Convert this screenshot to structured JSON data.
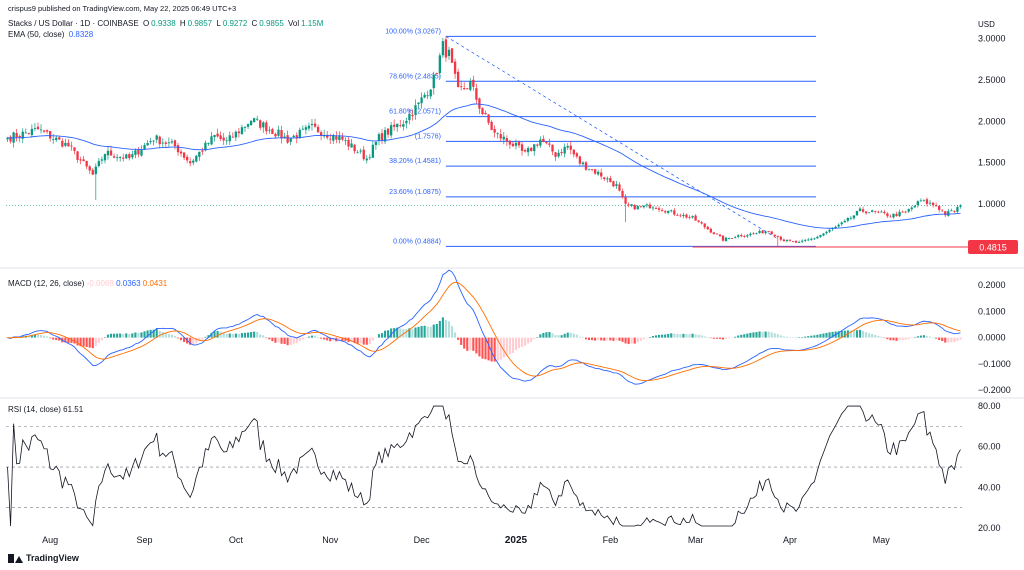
{
  "watermark": "crispus9 published on TradingView.com, May 22, 2025 06:49 UTC+3",
  "legend": {
    "symbol": "Stacks / US Dollar · 1D · COINBASE",
    "o_label": "O",
    "o": "0.9338",
    "h_label": "H",
    "h": "0.9857",
    "l_label": "L",
    "l": "0.9272",
    "c_label": "C",
    "c": "0.9855",
    "vol_label": "Vol",
    "vol": "1.15M",
    "ema_label": "EMA (50, close)",
    "ema": "0.8328"
  },
  "currency": "USD",
  "colors": {
    "up": "#089981",
    "down": "#f23645",
    "ema": "#2962ff",
    "macd": "#2962ff",
    "signal": "#ff6d00",
    "rsi": "#131722",
    "fib": "#2962ff",
    "price_line": "#f23645"
  },
  "chart_data": [
    {
      "type": "candlestick",
      "ylim": [
        0.3,
        3.2
      ],
      "yticks": [
        "3.0000",
        "2.5000",
        "2.0000",
        "1.5000",
        "1.0000"
      ],
      "ytick_values": [
        3.0,
        2.5,
        2.0,
        1.5,
        1.0
      ],
      "price_label": "0.4815",
      "price_value": 0.4815,
      "last_close": 0.9855,
      "fib_levels": [
        {
          "label": "100.00% (3.0267)",
          "value": 3.0267
        },
        {
          "label": "78.60% (2.4835)",
          "value": 2.4835
        },
        {
          "label": "61.80% (2.0571)",
          "value": 2.0571
        },
        {
          "label": "(1.7576)",
          "value": 1.7576
        },
        {
          "label": "38.20% (1.4581)",
          "value": 1.4581
        },
        {
          "label": "23.60% (1.0875)",
          "value": 1.0875
        },
        {
          "label": "0.00% (0.4884)",
          "value": 0.4884
        }
      ],
      "anchors": [
        [
          0,
          1.8
        ],
        [
          10,
          1.9
        ],
        [
          20,
          1.7
        ],
        [
          28,
          1.35
        ],
        [
          32,
          1.62
        ],
        [
          40,
          1.55
        ],
        [
          48,
          1.8
        ],
        [
          55,
          1.7
        ],
        [
          60,
          1.5
        ],
        [
          68,
          1.82
        ],
        [
          72,
          1.75
        ],
        [
          80,
          2.02
        ],
        [
          84,
          1.95
        ],
        [
          92,
          1.78
        ],
        [
          100,
          1.92
        ],
        [
          110,
          1.78
        ],
        [
          118,
          1.55
        ],
        [
          122,
          1.8
        ],
        [
          130,
          2.0
        ],
        [
          135,
          2.2
        ],
        [
          140,
          2.5
        ],
        [
          143,
          2.9
        ],
        [
          145,
          2.8
        ],
        [
          148,
          2.35
        ],
        [
          152,
          2.45
        ],
        [
          156,
          2.1
        ],
        [
          160,
          1.85
        ],
        [
          165,
          1.75
        ],
        [
          170,
          1.6
        ],
        [
          175,
          1.78
        ],
        [
          180,
          1.6
        ],
        [
          184,
          1.7
        ],
        [
          188,
          1.5
        ],
        [
          195,
          1.35
        ],
        [
          200,
          1.22
        ],
        [
          203,
          0.98
        ],
        [
          207,
          0.96
        ],
        [
          212,
          0.98
        ],
        [
          218,
          0.9
        ],
        [
          225,
          0.83
        ],
        [
          230,
          0.7
        ],
        [
          235,
          0.57
        ],
        [
          240,
          0.62
        ],
        [
          245,
          0.64
        ],
        [
          250,
          0.68
        ],
        [
          255,
          0.56
        ],
        [
          260,
          0.53
        ],
        [
          265,
          0.59
        ],
        [
          270,
          0.68
        ],
        [
          275,
          0.78
        ],
        [
          280,
          0.92
        ],
        [
          285,
          0.9
        ],
        [
          290,
          0.86
        ],
        [
          295,
          0.9
        ],
        [
          300,
          1.04
        ],
        [
          305,
          0.98
        ],
        [
          308,
          0.88
        ],
        [
          311,
          0.92
        ],
        [
          313,
          0.986
        ]
      ]
    },
    {
      "type": "line",
      "name": "MACD (12, 26, close)",
      "values_label": [
        "-0.0069",
        "0.0363",
        "0.0431"
      ],
      "ylim": [
        -0.2,
        0.22
      ],
      "yticks": [
        "0.2000",
        "0.1000",
        "0.0000",
        "−0.1000",
        "−0.2000"
      ],
      "ytick_values": [
        0.2,
        0.1,
        0.0,
        -0.1,
        -0.2
      ]
    },
    {
      "type": "line",
      "name": "RSI (14, close)",
      "value": "61.51",
      "ylim": [
        20,
        82
      ],
      "yticks": [
        "80.00",
        "60.00",
        "40.00",
        "20.00"
      ],
      "ytick_values": [
        80,
        60,
        40,
        20
      ],
      "bands": [
        70,
        50,
        30
      ]
    }
  ],
  "xaxis": {
    "labels": [
      {
        "text": "Aug",
        "bar": 14,
        "bold": false
      },
      {
        "text": "Sep",
        "bar": 45,
        "bold": false
      },
      {
        "text": "Oct",
        "bar": 75,
        "bold": false
      },
      {
        "text": "Nov",
        "bar": 106,
        "bold": false
      },
      {
        "text": "Dec",
        "bar": 136,
        "bold": false
      },
      {
        "text": "2025",
        "bar": 167,
        "bold": true
      },
      {
        "text": "Feb",
        "bar": 198,
        "bold": false
      },
      {
        "text": "Mar",
        "bar": 226,
        "bold": false
      },
      {
        "text": "Apr",
        "bar": 257,
        "bold": false
      },
      {
        "text": "May",
        "bar": 287,
        "bold": false
      }
    ],
    "bars": 314
  },
  "footer": "TradingView"
}
